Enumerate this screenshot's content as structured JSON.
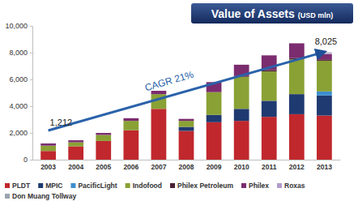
{
  "chart_data": {
    "type": "bar",
    "stacked": true,
    "title": "Value of Assets",
    "subtitle": "(USD mln)",
    "categories": [
      "2003",
      "2004",
      "2005",
      "2006",
      "2007",
      "2008",
      "2009",
      "2010",
      "2011",
      "2012",
      "2013"
    ],
    "series": [
      {
        "name": "PLDT",
        "color": "#c0282d",
        "values": [
          650,
          1000,
          1400,
          2200,
          3800,
          2150,
          2800,
          2900,
          3200,
          3400,
          3300
        ]
      },
      {
        "name": "MPIC",
        "color": "#1f3a70",
        "values": [
          0,
          0,
          0,
          0,
          0,
          300,
          550,
          900,
          1200,
          1500,
          1500
        ]
      },
      {
        "name": "PacificLight",
        "color": "#3c8fcf",
        "values": [
          0,
          0,
          0,
          0,
          0,
          0,
          0,
          0,
          0,
          0,
          300
        ]
      },
      {
        "name": "Indofood",
        "color": "#8aa135",
        "values": [
          400,
          300,
          450,
          700,
          1100,
          450,
          1700,
          2400,
          2200,
          2600,
          2300
        ]
      },
      {
        "name": "Philex Petroleum",
        "color": "#4a1f33",
        "values": [
          0,
          0,
          0,
          0,
          0,
          0,
          0,
          50,
          100,
          100,
          100
        ]
      },
      {
        "name": "Philex",
        "color": "#7b2c6f",
        "values": [
          162,
          150,
          150,
          200,
          250,
          150,
          750,
          850,
          1100,
          1100,
          400
        ]
      },
      {
        "name": "Roxas",
        "color": "#b29bcb",
        "values": [
          0,
          0,
          0,
          0,
          0,
          0,
          0,
          0,
          0,
          0,
          75
        ]
      },
      {
        "name": "Don Muang Tollway",
        "color": "#9aa3ae",
        "values": [
          0,
          0,
          0,
          0,
          0,
          0,
          0,
          0,
          0,
          0,
          50
        ]
      }
    ],
    "ylim": [
      0,
      10000
    ],
    "yticks": [
      0,
      {
        "value": 2000,
        "label": "2,000"
      },
      {
        "value": 4000,
        "label": "4,000"
      },
      {
        "value": 6000,
        "label": "6,000"
      },
      {
        "value": 8000,
        "label": "8,000"
      },
      {
        "value": 10000,
        "label": "10,000"
      }
    ],
    "grid": false,
    "legend": "bottom",
    "annotations": [
      "CAGR 21%",
      "1,212",
      "8,025"
    ]
  }
}
